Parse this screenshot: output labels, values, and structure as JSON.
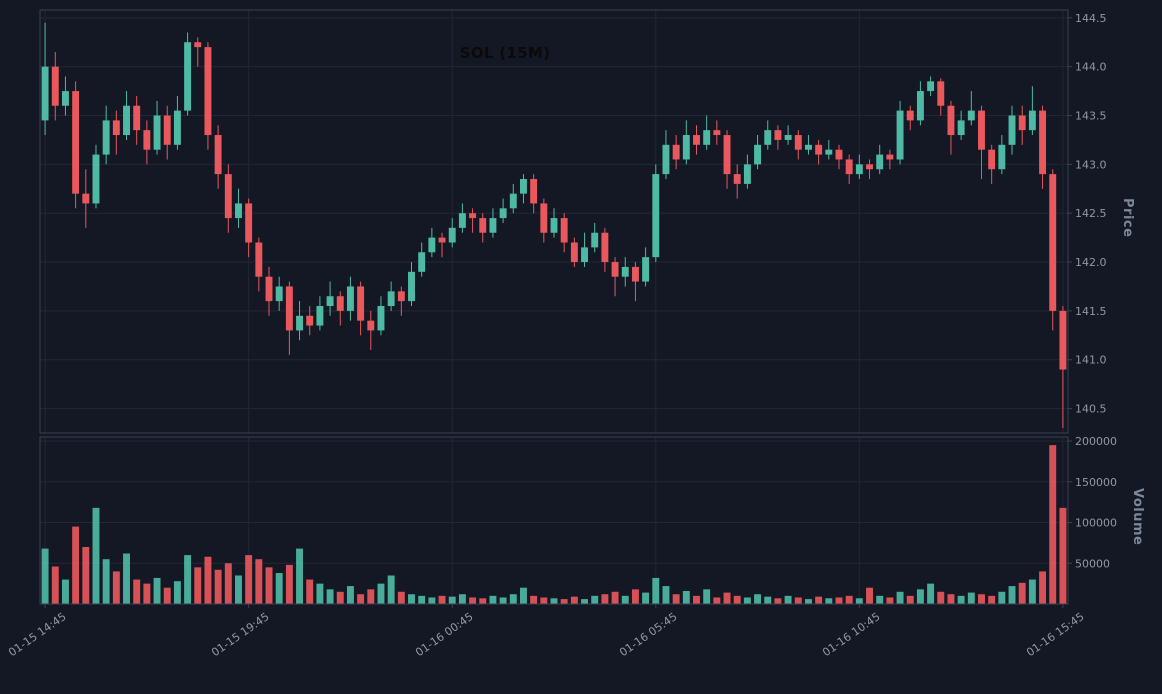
{
  "chart_data": {
    "type": "candlestick",
    "title": "SOL (15M)",
    "symbol": "SOL",
    "interval": "15M",
    "legend_position": "none",
    "grid": true,
    "x_tick_indices": [
      0,
      20,
      40,
      60,
      80,
      100
    ],
    "x_tick_labels": [
      "01-15 14:45",
      "01-15 19:45",
      "01-16 00:45",
      "01-16 05:45",
      "01-16 10:45",
      "01-16 15:45"
    ],
    "price_axis": {
      "label": "Price",
      "side": "right",
      "ticks": [
        140.5,
        141.0,
        141.5,
        142.0,
        142.5,
        143.0,
        143.5,
        144.0,
        144.5
      ],
      "range": [
        140.25,
        144.58
      ]
    },
    "volume_axis": {
      "label": "Volume",
      "side": "right",
      "ticks": [
        50000,
        100000,
        150000,
        200000
      ],
      "range": [
        0,
        205000
      ]
    },
    "colors": {
      "up": "#4ebaa5",
      "down": "#e8585c",
      "background": "#141824",
      "grid": "#232735",
      "spine": "#3a4150",
      "tick_text": "#9098a5",
      "axis_label_text": "#7c8797",
      "title_text": "#0a0a0a"
    },
    "candles": {
      "open": [
        143.45,
        144.0,
        143.6,
        143.75,
        142.7,
        142.6,
        143.1,
        143.45,
        143.3,
        143.6,
        143.35,
        143.15,
        143.5,
        143.2,
        143.55,
        144.25,
        144.2,
        143.3,
        142.9,
        142.45,
        142.6,
        142.2,
        141.85,
        141.6,
        141.75,
        141.3,
        141.45,
        141.35,
        141.55,
        141.65,
        141.5,
        141.75,
        141.4,
        141.3,
        141.55,
        141.7,
        141.6,
        141.9,
        142.1,
        142.25,
        142.2,
        142.35,
        142.5,
        142.45,
        142.3,
        142.45,
        142.55,
        142.7,
        142.85,
        142.6,
        142.3,
        142.45,
        142.2,
        142.0,
        142.15,
        142.3,
        142.0,
        141.85,
        141.95,
        141.8,
        142.05,
        142.9,
        143.2,
        143.05,
        143.3,
        143.2,
        143.35,
        143.3,
        142.9,
        142.8,
        143.0,
        143.2,
        143.35,
        143.25,
        143.3,
        143.15,
        143.2,
        143.1,
        143.15,
        143.05,
        142.9,
        143.0,
        142.95,
        143.1,
        143.05,
        143.55,
        143.45,
        143.75,
        143.85,
        143.6,
        143.3,
        143.45,
        143.55,
        143.15,
        142.95,
        143.2,
        143.5,
        143.35,
        143.55,
        142.9,
        141.5
      ],
      "high": [
        144.45,
        144.15,
        143.9,
        143.85,
        142.95,
        143.2,
        143.6,
        143.55,
        143.75,
        143.7,
        143.45,
        143.65,
        143.6,
        143.7,
        144.35,
        144.3,
        144.25,
        143.4,
        143.0,
        142.75,
        142.65,
        142.25,
        141.95,
        141.85,
        141.8,
        141.6,
        141.55,
        141.65,
        141.8,
        141.7,
        141.85,
        141.8,
        141.5,
        141.65,
        141.8,
        141.75,
        142.0,
        142.2,
        142.35,
        142.3,
        142.45,
        142.6,
        142.55,
        142.5,
        142.55,
        142.65,
        142.8,
        142.9,
        142.9,
        142.65,
        142.55,
        142.5,
        142.25,
        142.3,
        142.4,
        142.35,
        142.05,
        142.05,
        142.0,
        142.15,
        143.0,
        143.35,
        143.3,
        143.45,
        143.4,
        143.5,
        143.45,
        143.35,
        143.0,
        143.1,
        143.3,
        143.45,
        143.4,
        143.4,
        143.35,
        143.3,
        143.25,
        143.25,
        143.2,
        143.1,
        143.1,
        143.05,
        143.2,
        143.15,
        143.65,
        143.6,
        143.85,
        143.9,
        143.88,
        143.65,
        143.55,
        143.75,
        143.6,
        143.2,
        143.3,
        143.6,
        143.6,
        143.8,
        143.6,
        142.95,
        141.55
      ],
      "low": [
        143.3,
        143.45,
        143.5,
        142.55,
        142.35,
        142.55,
        143.0,
        143.1,
        143.25,
        143.2,
        143.0,
        143.1,
        143.05,
        143.15,
        143.5,
        144.0,
        143.15,
        142.75,
        142.3,
        142.35,
        142.05,
        141.7,
        141.45,
        141.5,
        141.05,
        141.2,
        141.25,
        141.3,
        141.45,
        141.35,
        141.4,
        141.25,
        141.1,
        141.25,
        141.5,
        141.45,
        141.55,
        141.85,
        142.05,
        142.05,
        142.15,
        142.3,
        142.3,
        142.2,
        142.25,
        142.4,
        142.5,
        142.6,
        142.5,
        142.2,
        142.25,
        142.1,
        141.95,
        141.95,
        142.1,
        141.9,
        141.65,
        141.75,
        141.6,
        141.75,
        142.0,
        142.85,
        142.95,
        143.0,
        143.1,
        143.15,
        143.2,
        142.75,
        142.65,
        142.75,
        142.95,
        143.15,
        143.15,
        143.2,
        143.05,
        143.1,
        143.0,
        143.05,
        142.95,
        142.8,
        142.85,
        142.85,
        142.9,
        142.95,
        143.0,
        143.35,
        143.4,
        143.7,
        143.5,
        143.1,
        143.25,
        143.4,
        142.85,
        142.8,
        142.9,
        143.1,
        143.2,
        143.3,
        142.75,
        141.3,
        140.3
      ],
      "close": [
        144.0,
        143.6,
        143.75,
        142.7,
        142.6,
        143.1,
        143.45,
        143.3,
        143.6,
        143.35,
        143.15,
        143.5,
        143.2,
        143.55,
        144.25,
        144.2,
        143.3,
        142.9,
        142.45,
        142.6,
        142.2,
        141.85,
        141.6,
        141.75,
        141.3,
        141.45,
        141.35,
        141.55,
        141.65,
        141.5,
        141.75,
        141.4,
        141.3,
        141.55,
        141.7,
        141.6,
        141.9,
        142.1,
        142.25,
        142.2,
        142.35,
        142.5,
        142.45,
        142.3,
        142.45,
        142.55,
        142.7,
        142.85,
        142.6,
        142.3,
        142.45,
        142.2,
        142.0,
        142.15,
        142.3,
        142.0,
        141.85,
        141.95,
        141.8,
        142.05,
        142.9,
        143.2,
        143.05,
        143.3,
        143.2,
        143.35,
        143.3,
        142.9,
        142.8,
        143.0,
        143.2,
        143.35,
        143.25,
        143.3,
        143.15,
        143.2,
        143.1,
        143.15,
        143.05,
        142.9,
        143.0,
        142.95,
        143.1,
        143.05,
        143.55,
        143.45,
        143.75,
        143.85,
        143.6,
        143.3,
        143.45,
        143.55,
        143.15,
        142.95,
        143.2,
        143.5,
        143.35,
        143.55,
        142.9,
        141.5,
        140.9
      ],
      "volume": [
        68000,
        46000,
        30000,
        95000,
        70000,
        118000,
        55000,
        40000,
        62000,
        30000,
        25000,
        32000,
        20000,
        28000,
        60000,
        45000,
        58000,
        42000,
        50000,
        35000,
        60000,
        55000,
        45000,
        38000,
        48000,
        68000,
        30000,
        25000,
        18000,
        15000,
        22000,
        12000,
        18000,
        25000,
        35000,
        15000,
        12000,
        10000,
        8000,
        10000,
        9000,
        12000,
        8000,
        7000,
        10000,
        8000,
        12000,
        20000,
        10000,
        8000,
        7000,
        6000,
        9000,
        6000,
        10000,
        12000,
        15000,
        10000,
        18000,
        14000,
        32000,
        22000,
        12000,
        16000,
        10000,
        18000,
        8000,
        14000,
        10000,
        8000,
        12000,
        9000,
        7000,
        10000,
        8000,
        6000,
        9000,
        7000,
        8000,
        10000,
        7000,
        20000,
        10000,
        8000,
        15000,
        10000,
        18000,
        25000,
        15000,
        12000,
        10000,
        14000,
        12000,
        10000,
        15000,
        22000,
        26000,
        30000,
        40000,
        195000,
        118000
      ]
    }
  }
}
